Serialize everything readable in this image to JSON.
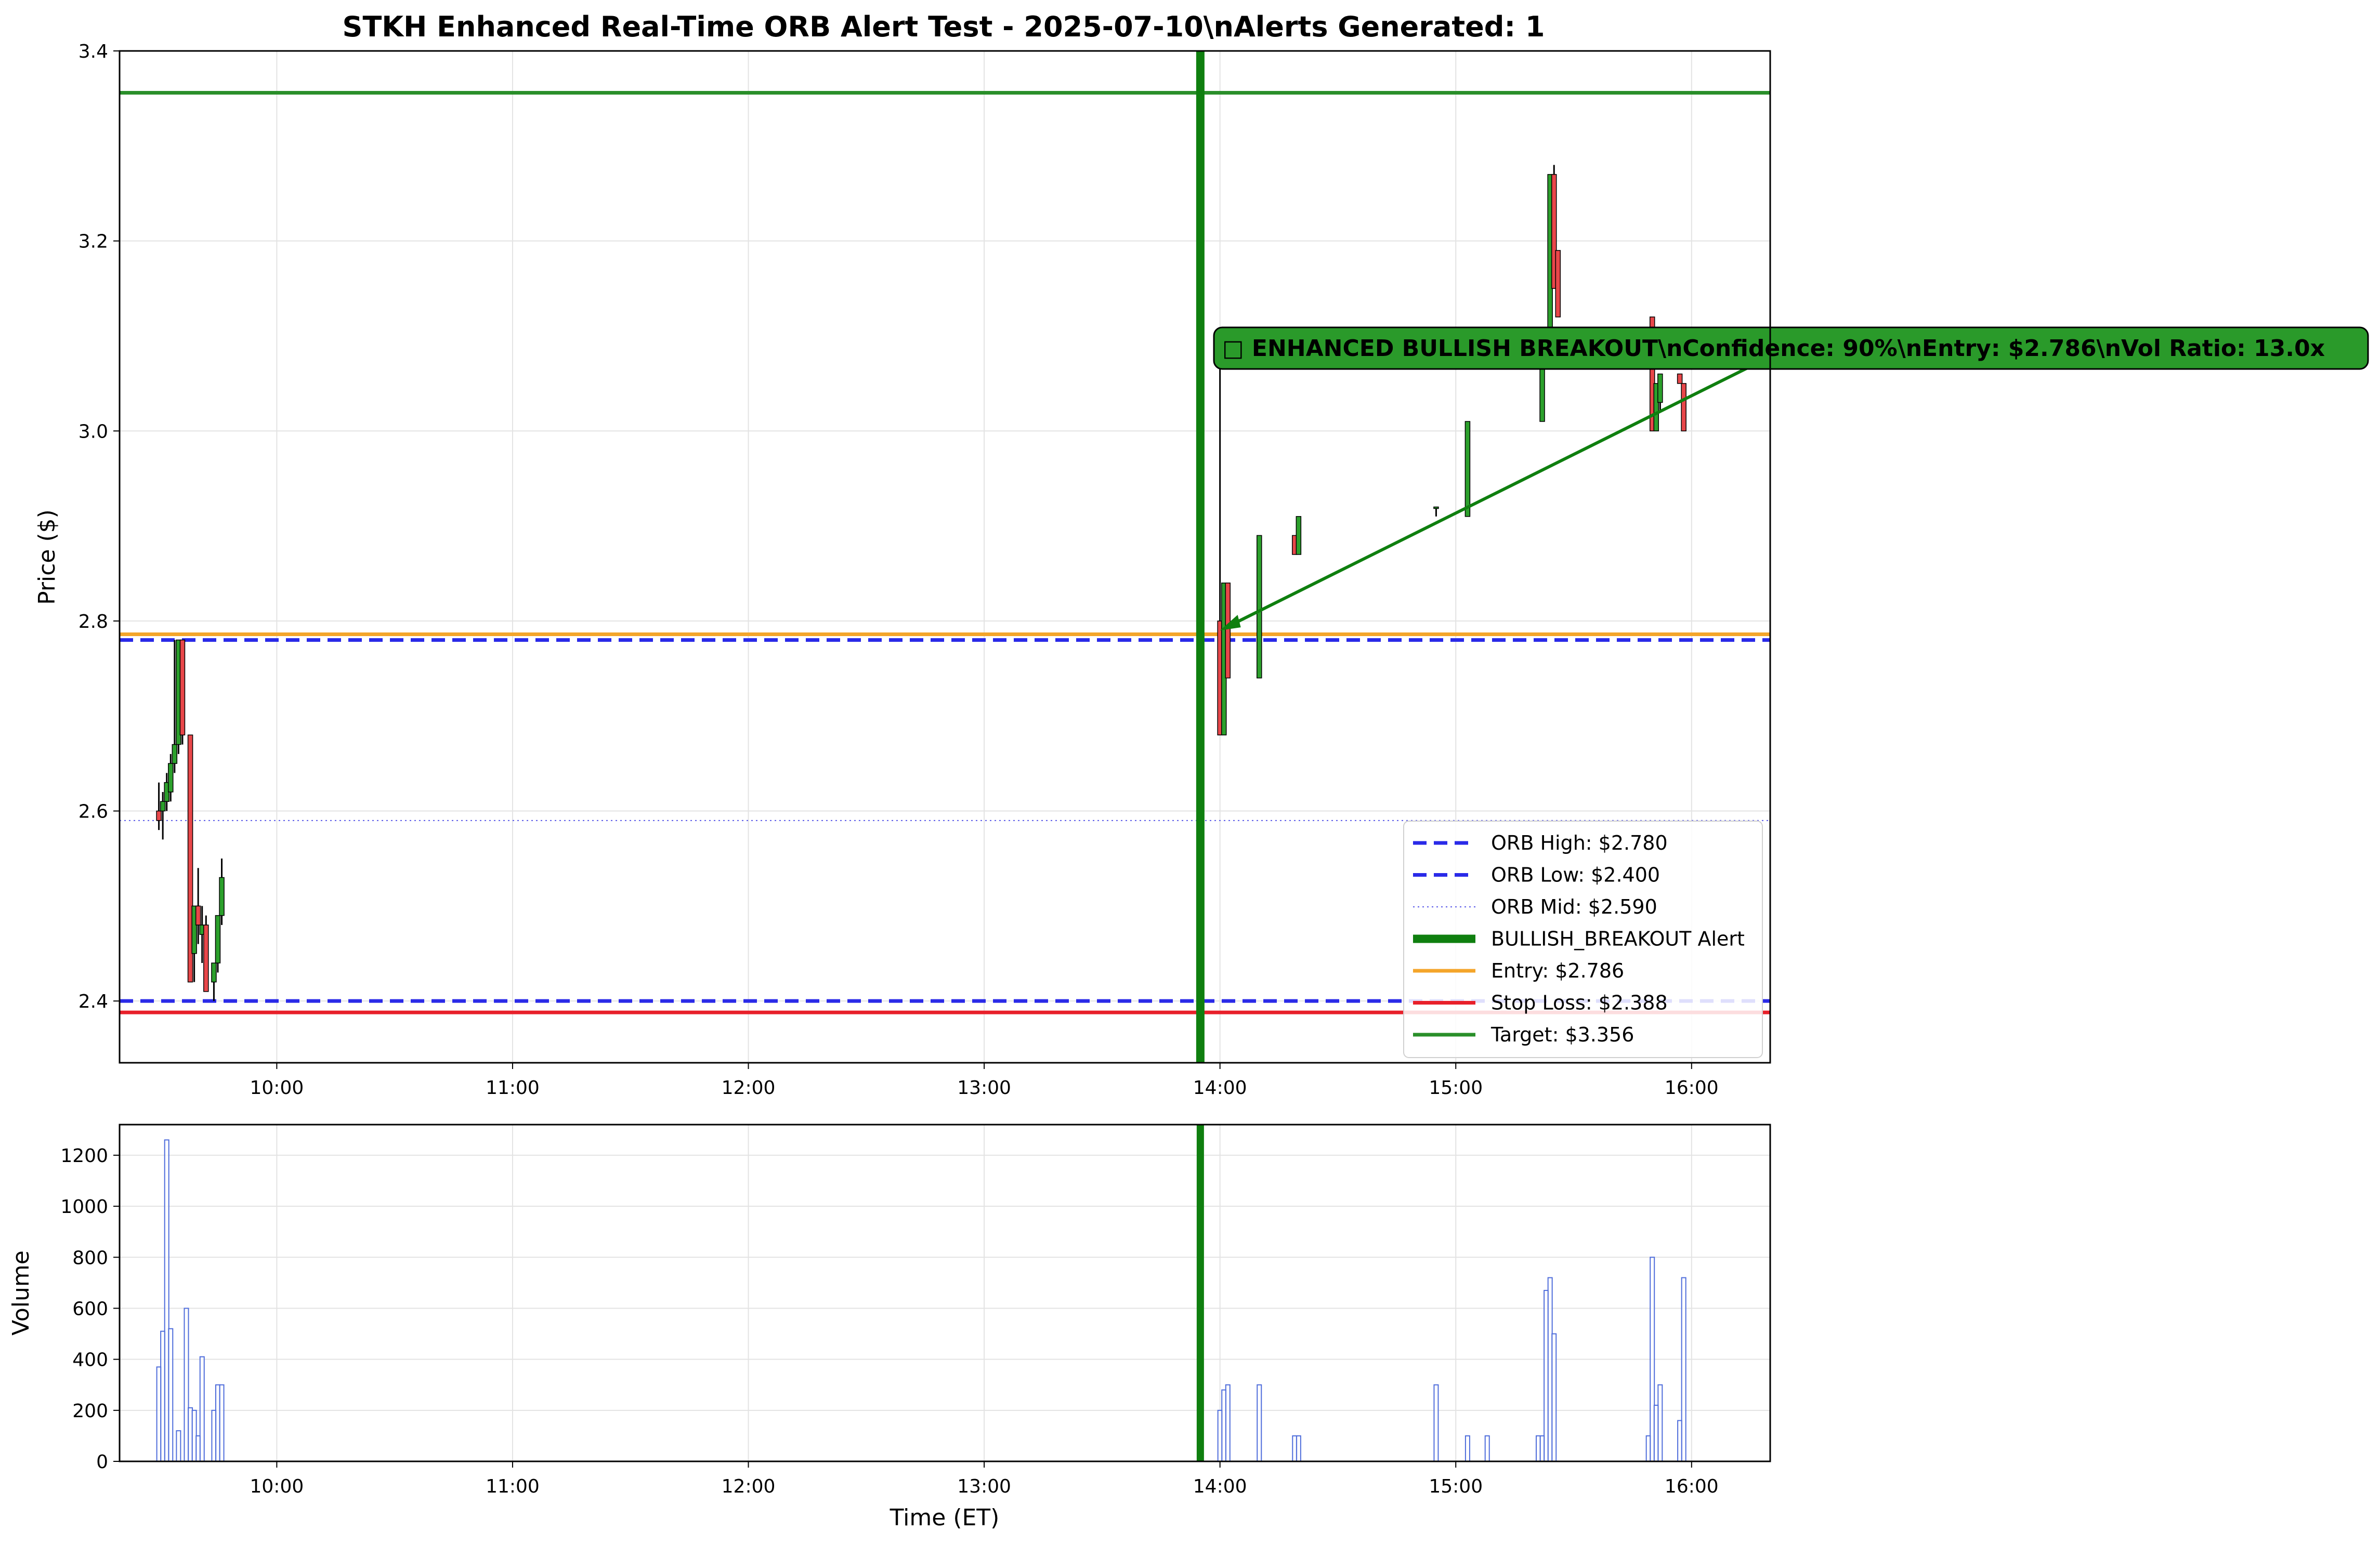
{
  "chart_data": [
    {
      "type": "candlestick",
      "title": "STKH Enhanced Real-Time ORB Alert Test - 2025-07-10\\nAlerts Generated: 1",
      "ylabel": "Price ($)",
      "xlabel": "",
      "ylim": [
        2.335,
        3.4
      ],
      "xlim": [
        "09:20",
        "16:20"
      ],
      "x_ticks": [
        "10:00",
        "11:00",
        "12:00",
        "13:00",
        "14:00",
        "15:00",
        "16:00"
      ],
      "y_ticks": [
        "2.4",
        "2.6",
        "2.8",
        "3.0",
        "3.2",
        "3.4"
      ],
      "grid": true,
      "legend_position": "lower-right",
      "colors": {
        "up": "#2ca02c",
        "down": "#e8474a",
        "orb": "#2a2ae8",
        "alert": "#0f7f0f",
        "entry": "#f4a52a",
        "stop": "#e8202a",
        "target": "#2a8f2a",
        "annotation_bg": "#2a9a2a"
      },
      "lines": {
        "orb_high": {
          "value": 2.78,
          "label": "ORB High: $2.780"
        },
        "orb_low": {
          "value": 2.4,
          "label": "ORB Low: $2.400"
        },
        "orb_mid": {
          "value": 2.59,
          "label": "ORB Mid: $2.590"
        },
        "alert": {
          "time": "13:55",
          "label": "BULLISH_BREAKOUT Alert"
        },
        "entry": {
          "value": 2.786,
          "label": "Entry: $2.786"
        },
        "stop": {
          "value": 2.388,
          "label": "Stop Loss: $2.388"
        },
        "target": {
          "value": 3.356,
          "label": "Target: $3.356"
        }
      },
      "annotation": {
        "text": "□ ENHANCED BULLISH BREAKOUT\\nConfidence: 90%\\nEntry: $2.786\\nVol Ratio: 13.0x",
        "point_time": "14:00",
        "point_price": 2.79,
        "arrow_to_time": "16:16",
        "arrow_to_price": 3.07
      },
      "candles": [
        {
          "t": "09:30",
          "o": 2.6,
          "h": 2.63,
          "l": 2.58,
          "c": 2.59
        },
        {
          "t": "09:31",
          "o": 2.6,
          "h": 2.62,
          "l": 2.57,
          "c": 2.61
        },
        {
          "t": "09:32",
          "o": 2.61,
          "h": 2.64,
          "l": 2.6,
          "c": 2.63
        },
        {
          "t": "09:33",
          "o": 2.62,
          "h": 2.66,
          "l": 2.61,
          "c": 2.65
        },
        {
          "t": "09:34",
          "o": 2.65,
          "h": 2.78,
          "l": 2.64,
          "c": 2.67
        },
        {
          "t": "09:35",
          "o": 2.67,
          "h": 2.78,
          "l": 2.66,
          "c": 2.78
        },
        {
          "t": "09:36",
          "o": 2.78,
          "h": 2.78,
          "l": 2.67,
          "c": 2.68
        },
        {
          "t": "09:38",
          "o": 2.68,
          "h": 2.68,
          "l": 2.42,
          "c": 2.42
        },
        {
          "t": "09:39",
          "o": 2.45,
          "h": 2.5,
          "l": 2.42,
          "c": 2.5
        },
        {
          "t": "09:40",
          "o": 2.5,
          "h": 2.54,
          "l": 2.46,
          "c": 2.48
        },
        {
          "t": "09:41",
          "o": 2.47,
          "h": 2.5,
          "l": 2.44,
          "c": 2.48
        },
        {
          "t": "09:42",
          "o": 2.48,
          "h": 2.49,
          "l": 2.41,
          "c": 2.41
        },
        {
          "t": "09:44",
          "o": 2.42,
          "h": 2.44,
          "l": 2.4,
          "c": 2.44
        },
        {
          "t": "09:45",
          "o": 2.44,
          "h": 2.49,
          "l": 2.43,
          "c": 2.49
        },
        {
          "t": "09:46",
          "o": 2.49,
          "h": 2.55,
          "l": 2.48,
          "c": 2.53
        },
        {
          "t": "14:00",
          "o": 2.8,
          "h": 3.1,
          "l": 2.68,
          "c": 2.68
        },
        {
          "t": "14:01",
          "o": 2.68,
          "h": 2.84,
          "l": 2.68,
          "c": 2.84
        },
        {
          "t": "14:02",
          "o": 2.84,
          "h": 2.84,
          "l": 2.74,
          "c": 2.74
        },
        {
          "t": "14:10",
          "o": 2.74,
          "h": 2.89,
          "l": 2.74,
          "c": 2.89
        },
        {
          "t": "14:19",
          "o": 2.89,
          "h": 2.89,
          "l": 2.87,
          "c": 2.87
        },
        {
          "t": "14:20",
          "o": 2.87,
          "h": 2.91,
          "l": 2.87,
          "c": 2.91
        },
        {
          "t": "14:55",
          "o": 2.92,
          "h": 2.92,
          "l": 2.91,
          "c": 2.92
        },
        {
          "t": "15:03",
          "o": 2.91,
          "h": 3.01,
          "l": 2.91,
          "c": 3.01
        },
        {
          "t": "15:22",
          "o": 3.01,
          "h": 3.08,
          "l": 3.01,
          "c": 3.08
        },
        {
          "t": "15:24",
          "o": 3.1,
          "h": 3.27,
          "l": 3.09,
          "c": 3.27
        },
        {
          "t": "15:25",
          "o": 3.27,
          "h": 3.28,
          "l": 3.15,
          "c": 3.15
        },
        {
          "t": "15:26",
          "o": 3.19,
          "h": 3.19,
          "l": 3.12,
          "c": 3.12
        },
        {
          "t": "15:50",
          "o": 3.12,
          "h": 3.12,
          "l": 3.0,
          "c": 3.0
        },
        {
          "t": "15:51",
          "o": 3.0,
          "h": 3.05,
          "l": 3.0,
          "c": 3.05
        },
        {
          "t": "15:52",
          "o": 3.03,
          "h": 3.06,
          "l": 3.02,
          "c": 3.06
        },
        {
          "t": "15:57",
          "o": 3.06,
          "h": 3.06,
          "l": 3.05,
          "c": 3.05
        },
        {
          "t": "15:58",
          "o": 3.05,
          "h": 3.05,
          "l": 3.0,
          "c": 3.0
        }
      ]
    },
    {
      "type": "bar",
      "xlabel": "Time (ET)",
      "ylabel": "Volume",
      "ylim": [
        0,
        1320
      ],
      "x_ticks": [
        "10:00",
        "11:00",
        "12:00",
        "13:00",
        "14:00",
        "15:00",
        "16:00"
      ],
      "y_ticks": [
        "0",
        "200",
        "400",
        "600",
        "800",
        "1000",
        "1200"
      ],
      "grid": true,
      "colors": {
        "bar_edge": "#4f6ddb",
        "alert": "#0f7f0f"
      },
      "alert_time": "13:55",
      "bars": [
        {
          "t": "09:30",
          "v": 370
        },
        {
          "t": "09:31",
          "v": 510
        },
        {
          "t": "09:32",
          "v": 1260
        },
        {
          "t": "09:33",
          "v": 520
        },
        {
          "t": "09:35",
          "v": 120
        },
        {
          "t": "09:37",
          "v": 600
        },
        {
          "t": "09:38",
          "v": 210
        },
        {
          "t": "09:39",
          "v": 200
        },
        {
          "t": "09:40",
          "v": 100
        },
        {
          "t": "09:41",
          "v": 410
        },
        {
          "t": "09:44",
          "v": 200
        },
        {
          "t": "09:45",
          "v": 300
        },
        {
          "t": "09:46",
          "v": 300
        },
        {
          "t": "14:00",
          "v": 200
        },
        {
          "t": "14:01",
          "v": 280
        },
        {
          "t": "14:02",
          "v": 300
        },
        {
          "t": "14:10",
          "v": 300
        },
        {
          "t": "14:19",
          "v": 100
        },
        {
          "t": "14:20",
          "v": 100
        },
        {
          "t": "14:55",
          "v": 300
        },
        {
          "t": "15:03",
          "v": 100
        },
        {
          "t": "15:08",
          "v": 100
        },
        {
          "t": "15:21",
          "v": 100
        },
        {
          "t": "15:22",
          "v": 100
        },
        {
          "t": "15:23",
          "v": 670
        },
        {
          "t": "15:24",
          "v": 720
        },
        {
          "t": "15:25",
          "v": 500
        },
        {
          "t": "15:49",
          "v": 100
        },
        {
          "t": "15:50",
          "v": 800
        },
        {
          "t": "15:51",
          "v": 220
        },
        {
          "t": "15:52",
          "v": 300
        },
        {
          "t": "15:57",
          "v": 160
        },
        {
          "t": "15:58",
          "v": 720
        }
      ]
    }
  ]
}
